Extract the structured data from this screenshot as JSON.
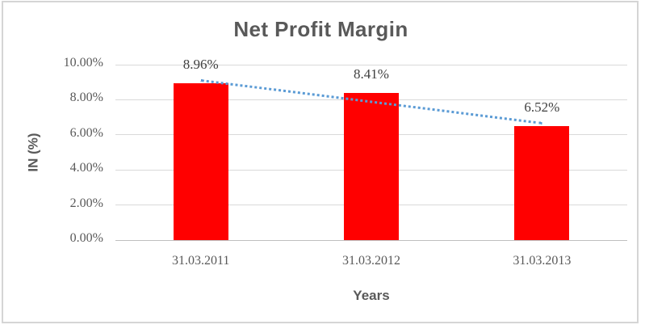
{
  "chart_data": {
    "type": "bar",
    "title": "Net Profit Margin",
    "categories": [
      "31.03.2011",
      "31.03.2012",
      "31.03.2013"
    ],
    "values": [
      8.96,
      8.41,
      6.52
    ],
    "data_labels": [
      "8.96%",
      "8.41%",
      "6.52%"
    ],
    "xlabel": "Years",
    "ylabel": "IN (%)",
    "ylim": [
      0,
      10
    ],
    "ytick_step": 2,
    "ytick_labels": [
      "0.00%",
      "2.00%",
      "4.00%",
      "6.00%",
      "8.00%",
      "10.00%"
    ],
    "grid": true,
    "legend": false,
    "bar_color": "#ff0000",
    "trendline": {
      "type": "linear",
      "line_style": "dotted",
      "color": "#5b9bd5",
      "start_value": 9.18,
      "end_value": 6.74
    },
    "colors": {
      "title_text": "#595959",
      "axis_title_text": "#595959",
      "tick_text": "#595959",
      "data_label_text": "#404040",
      "gridline": "#d9d9d9",
      "axis_line": "#bfbfbf",
      "frame_border": "#d5d5d5"
    }
  }
}
